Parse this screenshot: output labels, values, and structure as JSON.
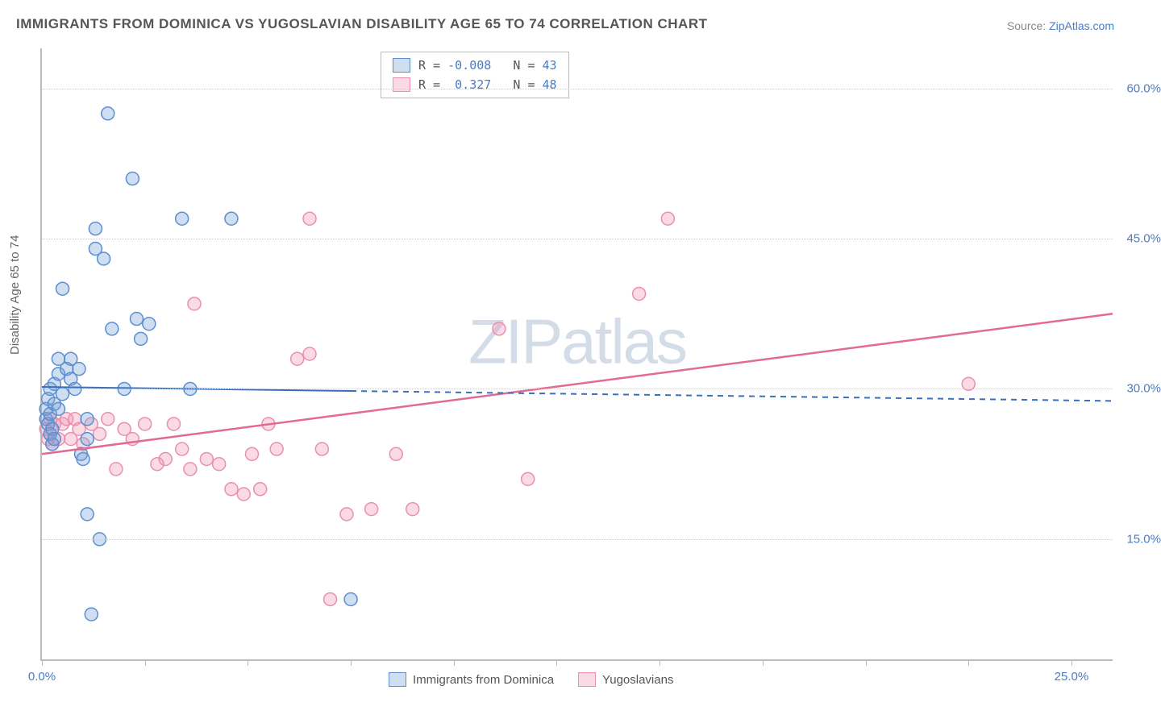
{
  "title": "IMMIGRANTS FROM DOMINICA VS YUGOSLAVIAN DISABILITY AGE 65 TO 74 CORRELATION CHART",
  "source_prefix": "Source: ",
  "source_link": "ZipAtlas.com",
  "ylabel": "Disability Age 65 to 74",
  "watermark_bold": "ZIP",
  "watermark_light": "atlas",
  "chart": {
    "type": "scatter",
    "xmin": 0,
    "xmax": 26,
    "ymin": 3,
    "ymax": 64,
    "x_ticks": [
      0,
      2.5,
      5,
      7.5,
      10,
      12.5,
      15,
      17.5,
      20,
      22.5,
      25
    ],
    "x_tick_labels": {
      "0": "0.0%",
      "25": "25.0%"
    },
    "y_gridlines": [
      15,
      30,
      45,
      60
    ],
    "y_tick_labels": {
      "15": "15.0%",
      "30": "30.0%",
      "45": "45.0%",
      "60": "60.0%"
    },
    "background_color": "#ffffff",
    "grid_color": "#cccccc",
    "axis_color": "#bbbbbb",
    "label_color": "#4a7cc0"
  },
  "series": {
    "blue": {
      "label": "Immigrants from Dominica",
      "R": "-0.008",
      "N": "43",
      "fill": "rgba(120,160,215,0.35)",
      "stroke": "#5b8fd0",
      "marker_radius": 8,
      "line": {
        "x1": 0,
        "y1": 30.2,
        "x2": 26,
        "y2": 28.8,
        "solid_until_x": 7.5,
        "color": "#3b6fb8",
        "width": 2
      },
      "points": [
        [
          0.1,
          27
        ],
        [
          0.1,
          28
        ],
        [
          0.15,
          26.5
        ],
        [
          0.15,
          29
        ],
        [
          0.2,
          25.5
        ],
        [
          0.2,
          27.5
        ],
        [
          0.2,
          30
        ],
        [
          0.25,
          26
        ],
        [
          0.3,
          30.5
        ],
        [
          0.3,
          28.5
        ],
        [
          0.4,
          31.5
        ],
        [
          0.4,
          33
        ],
        [
          0.4,
          28
        ],
        [
          0.5,
          40
        ],
        [
          0.5,
          29.5
        ],
        [
          0.6,
          32
        ],
        [
          0.7,
          33
        ],
        [
          0.7,
          31
        ],
        [
          0.8,
          30
        ],
        [
          0.9,
          32
        ],
        [
          0.95,
          23.5
        ],
        [
          1.0,
          23
        ],
        [
          1.1,
          25
        ],
        [
          1.1,
          27
        ],
        [
          1.1,
          17.5
        ],
        [
          1.2,
          7.5
        ],
        [
          1.3,
          44
        ],
        [
          1.3,
          46
        ],
        [
          1.4,
          15
        ],
        [
          1.5,
          43
        ],
        [
          1.6,
          57.5
        ],
        [
          1.7,
          36
        ],
        [
          2.0,
          30
        ],
        [
          2.2,
          51
        ],
        [
          2.3,
          37
        ],
        [
          2.4,
          35
        ],
        [
          2.6,
          36.5
        ],
        [
          3.4,
          47
        ],
        [
          3.6,
          30
        ],
        [
          4.6,
          47
        ],
        [
          7.5,
          9
        ],
        [
          0.25,
          24.5
        ],
        [
          0.3,
          25
        ]
      ]
    },
    "pink": {
      "label": "Yugoslavians",
      "R": "0.327",
      "N": "48",
      "fill": "rgba(240,150,180,0.35)",
      "stroke": "#e890ae",
      "marker_radius": 8,
      "line": {
        "x1": 0,
        "y1": 23.5,
        "x2": 26,
        "y2": 37.5,
        "solid_until_x": 26,
        "color": "#e26a93",
        "width": 2.5
      },
      "points": [
        [
          0.1,
          26
        ],
        [
          0.15,
          25
        ],
        [
          0.2,
          25.5
        ],
        [
          0.2,
          27
        ],
        [
          0.25,
          24.5
        ],
        [
          0.3,
          26.5
        ],
        [
          0.4,
          25
        ],
        [
          0.5,
          26.5
        ],
        [
          0.6,
          27
        ],
        [
          0.7,
          25
        ],
        [
          0.8,
          27
        ],
        [
          0.9,
          26
        ],
        [
          1.0,
          24.5
        ],
        [
          1.2,
          26.5
        ],
        [
          1.4,
          25.5
        ],
        [
          1.6,
          27
        ],
        [
          1.8,
          22
        ],
        [
          2.0,
          26
        ],
        [
          2.2,
          25
        ],
        [
          2.5,
          26.5
        ],
        [
          2.8,
          22.5
        ],
        [
          3.0,
          23
        ],
        [
          3.2,
          26.5
        ],
        [
          3.4,
          24
        ],
        [
          3.6,
          22
        ],
        [
          3.7,
          38.5
        ],
        [
          4.0,
          23
        ],
        [
          4.3,
          22.5
        ],
        [
          4.6,
          20
        ],
        [
          4.9,
          19.5
        ],
        [
          5.1,
          23.5
        ],
        [
          5.3,
          20
        ],
        [
          5.5,
          26.5
        ],
        [
          5.7,
          24
        ],
        [
          6.2,
          33
        ],
        [
          6.5,
          33.5
        ],
        [
          6.5,
          47
        ],
        [
          7.0,
          9
        ],
        [
          7.4,
          17.5
        ],
        [
          8.0,
          18
        ],
        [
          8.6,
          23.5
        ],
        [
          9.0,
          18
        ],
        [
          11.1,
          36
        ],
        [
          11.8,
          21
        ],
        [
          14.5,
          39.5
        ],
        [
          15.2,
          47
        ],
        [
          22.5,
          30.5
        ],
        [
          6.8,
          24
        ]
      ]
    }
  },
  "legend_labels": {
    "R": "R =",
    "N": "N ="
  },
  "bottom_legend": [
    {
      "series": "blue"
    },
    {
      "series": "pink"
    }
  ]
}
